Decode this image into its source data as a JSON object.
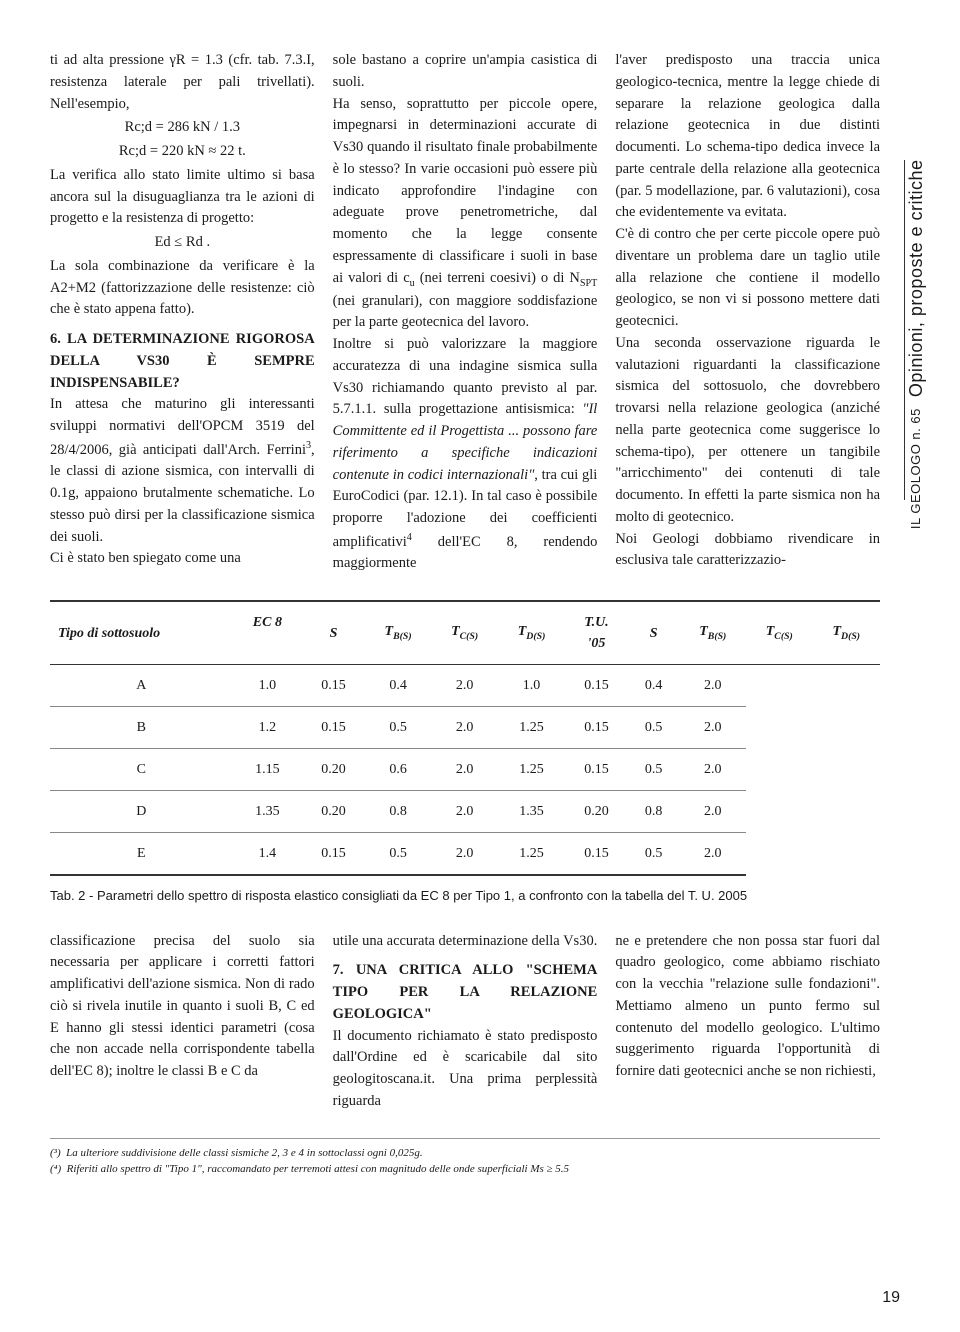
{
  "gutter": {
    "section_title": "IL GEOLOGO n. 65",
    "section_subtitle": "Opinioni, proposte e critiche"
  },
  "page_number": "19",
  "columns": {
    "col1": {
      "p1": "ti ad alta pressione γR = 1.3 (cfr. tab. 7.3.I, resistenza laterale per pali trivellati). Nell'esempio,",
      "eq1": "Rc;d = 286 kN / 1.3",
      "eq2": "Rc;d = 220 kN ≈ 22 t.",
      "p2": "La verifica allo stato limite ultimo si basa ancora sul la disuguaglianza tra le azioni di progetto e la resistenza di progetto:",
      "eq3": "Ed ≤ Rd .",
      "p3": "La sola combinazione da verificare è la A2+M2 (fattorizzazione delle resistenze: ciò che è stato appena fatto).",
      "h1": "6. LA DETERMINAZIONE RIGOROSA DELLA VS30 È SEMPRE INDISPENSABILE?",
      "p4a": "In attesa che maturino gli interessanti sviluppi normativi dell'OPCM 3519 del 28/4/2006, già anticipati dall'Arch. Ferrini",
      "p4b": ", le classi di azione sismica, con intervalli di 0.1g, appaiono brutalmente schematiche. Lo stesso può dirsi per la classificazione sismica dei suoli.",
      "p5": "Ci è stato ben spiegato come una"
    },
    "col2": {
      "p1": "sole bastano a coprire un'ampia casistica di suoli.",
      "p2a": "Ha senso, soprattutto per piccole opere, impegnarsi in determinazioni accurate di Vs30 quando il risultato finale probabilmente è lo stesso? In varie occasioni può essere più indicato approfondire l'indagine con adeguate prove penetrometriche, dal momento che la legge consente espressamente di classificare i suoli in base ai valori di c",
      "p2b": " (nei terreni coesivi) o di N",
      "p2c": " (nei granulari), con maggiore soddisfazione per la parte geotecnica del lavoro.",
      "p3": "Inoltre si può valorizzare la maggiore accuratezza di una indagine sismica sulla Vs30 richiamando quanto previsto al par. 5.7.1.1. sulla progettazione antisismica: ",
      "p3i": "\"Il Committente ed il Progettista ... possono fare riferimento a specifiche indicazioni contenute in codici internazionali\"",
      "p3b": ", tra cui gli EuroCodici (par. 12.1). In tal caso è possibile proporre l'adozione dei coefficienti amplificativi",
      "p3c": " dell'EC 8, rendendo maggiormente"
    },
    "col3": {
      "p1": "l'aver predisposto una traccia unica geologico-tecnica, mentre la legge chiede di separare la relazione geologica dalla relazione geotecnica in due distinti documenti. Lo schema-tipo dedica invece la parte centrale della relazione alla geotecnica (par. 5 modellazione, par. 6 valutazioni), cosa che evidentemente va evitata.",
      "p2": "C'è di contro che per certe piccole opere può diventare un problema dare un taglio utile alla relazione che contiene il modello geologico, se non vi si possono mettere dati geotecnici.",
      "p3": "Una seconda osservazione riguarda le valutazioni riguardanti la classificazione sismica del sottosuolo, che dovrebbero trovarsi nella relazione geologica (anziché nella parte geotecnica come suggerisce lo schema-tipo), per ottenere un tangibile \"arricchimento\" dei contenuti di tale documento. In effetti la parte sismica non ha molto di geotecnico.",
      "p4": "Noi Geologi dobbiamo rivendicare in esclusiva tale caratterizzazio-"
    }
  },
  "table": {
    "headers": {
      "h1": "Tipo di sottosuolo",
      "h2": "EC 8",
      "h3": "S",
      "h4_prefix": "T",
      "h4_sub": "B(S)",
      "h5_prefix": "T",
      "h5_sub": "C(S)",
      "h6_prefix": "T",
      "h6_sub": "D(S)",
      "h7a": "T.U.",
      "h7b": "'05",
      "h8": "S",
      "h9_prefix": "T",
      "h9_sub": "B(S)",
      "h10_prefix": "T",
      "h10_sub": "C(S)",
      "h11_prefix": "T",
      "h11_sub": "D(S)"
    },
    "rows": [
      {
        "label": "A",
        "s1": "1.0",
        "tb1": "0.15",
        "tc1": "0.4",
        "td1": "2.0",
        "s2": "1.0",
        "tb2": "0.15",
        "tc2": "0.4",
        "td2": "2.0"
      },
      {
        "label": "B",
        "s1": "1.2",
        "tb1": "0.15",
        "tc1": "0.5",
        "td1": "2.0",
        "s2": "1.25",
        "tb2": "0.15",
        "tc2": "0.5",
        "td2": "2.0"
      },
      {
        "label": "C",
        "s1": "1.15",
        "tb1": "0.20",
        "tc1": "0.6",
        "td1": "2.0",
        "s2": "1.25",
        "tb2": "0.15",
        "tc2": "0.5",
        "td2": "2.0"
      },
      {
        "label": "D",
        "s1": "1.35",
        "tb1": "0.20",
        "tc1": "0.8",
        "td1": "2.0",
        "s2": "1.35",
        "tb2": "0.20",
        "tc2": "0.8",
        "td2": "2.0"
      },
      {
        "label": "E",
        "s1": "1.4",
        "tb1": "0.15",
        "tc1": "0.5",
        "td1": "2.0",
        "s2": "1.25",
        "tb2": "0.15",
        "tc2": "0.5",
        "td2": "2.0"
      }
    ],
    "caption": "Tab. 2 - Parametri dello spettro di risposta elastico consigliati da EC 8 per Tipo 1, a confronto con la tabella del T. U. 2005"
  },
  "columns2": {
    "col1": {
      "p1": "classificazione precisa del suolo sia necessaria per applicare i corretti fattori amplificativi dell'azione sismica. Non di rado ciò si rivela inutile in quanto i suoli B, C ed E hanno gli stessi identici parametri (cosa che non accade nella corrispondente tabella dell'EC 8); inoltre le classi B e C da"
    },
    "col2": {
      "p1": "utile una accurata determinazione della Vs30.",
      "h1": "7. UNA CRITICA ALLO \"SCHEMA TIPO PER LA RELAZIONE GEOLOGICA\"",
      "p2": "Il documento richiamato è stato predisposto dall'Ordine ed è scaricabile dal sito geologitoscana.it. Una prima perplessità riguarda"
    },
    "col3": {
      "p1": "ne e pretendere che non possa star fuori dal quadro geologico, come abbiamo rischiato con la vecchia \"relazione sulle fondazioni\". Mettiamo almeno un punto fermo sul contenuto del modello geologico. L'ultimo suggerimento riguarda l'opportunità di fornire dati geotecnici anche se non richiesti,"
    }
  },
  "footnotes": {
    "f3_marker": "(³)",
    "f3": "La ulteriore suddivisione delle classi sismiche 2, 3 e 4 in sottoclassi ogni 0,025g.",
    "f4_marker": "(⁴)",
    "f4": "Riferiti allo spettro di \"Tipo 1\", raccomandato per terremoti attesi con magnitudo delle onde superficiali Ms ≥ 5.5"
  }
}
